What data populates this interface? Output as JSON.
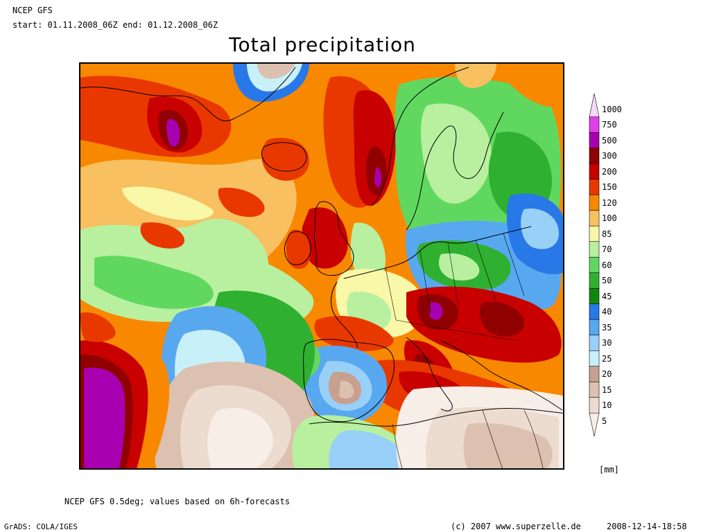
{
  "header": {
    "source": "NCEP GFS",
    "period": "start: 01.11.2008_06Z end: 01.12.2008_06Z",
    "title": "Total precipitation"
  },
  "legend": {
    "unit": "[mm]",
    "levels": [
      {
        "label": "1000",
        "color": "#f8d8f8"
      },
      {
        "label": "750",
        "color": "#e040e8"
      },
      {
        "label": "500",
        "color": "#a800b0"
      },
      {
        "label": "300",
        "color": "#900000"
      },
      {
        "label": "200",
        "color": "#c80000"
      },
      {
        "label": "150",
        "color": "#e83800"
      },
      {
        "label": "120",
        "color": "#f88800"
      },
      {
        "label": "100",
        "color": "#f8c060"
      },
      {
        "label": "85",
        "color": "#f8f8a8"
      },
      {
        "label": "70",
        "color": "#b8f0a0"
      },
      {
        "label": "60",
        "color": "#60d860"
      },
      {
        "label": "50",
        "color": "#30b030"
      },
      {
        "label": "45",
        "color": "#108810"
      },
      {
        "label": "40",
        "color": "#2878e8"
      },
      {
        "label": "35",
        "color": "#58a8f0"
      },
      {
        "label": "30",
        "color": "#98d0f8"
      },
      {
        "label": "25",
        "color": "#c8f0f8"
      },
      {
        "label": "20",
        "color": "#c8a090"
      },
      {
        "label": "15",
        "color": "#dcc0b0"
      },
      {
        "label": "10",
        "color": "#ecdcd0"
      },
      {
        "label": "5",
        "color": "#f8eee8"
      }
    ]
  },
  "footer": {
    "note": "NCEP GFS 0.5deg; values based on 6h-forecasts",
    "software": "GrADS: COLA/IGES",
    "copyright": "(c) 2007 www.superzelle.de",
    "timestamp": "2008-12-14-18:58"
  }
}
